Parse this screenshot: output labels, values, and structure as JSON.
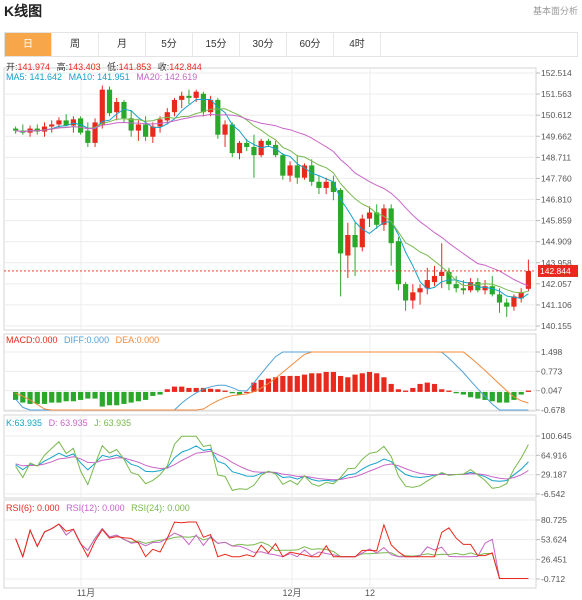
{
  "title": "K线图",
  "top_link": "基本面分析",
  "tabs": [
    "日",
    "周",
    "月",
    "5分",
    "15分",
    "30分",
    "60分",
    "4时"
  ],
  "active_tab": 0,
  "ohlc_info": {
    "open_label": "开:",
    "open": "141.974",
    "high_label": "高:",
    "high": "143.403",
    "low_label": "低:",
    "low": "141.853",
    "close_label": "收:",
    "close": "142.844"
  },
  "ma_info": {
    "ma5_label": "MA5:",
    "ma5": "141.642",
    "ma10_label": "MA10:",
    "ma10": "141.951",
    "ma20_label": "MA20:",
    "ma20": "142.619"
  },
  "macd_info": {
    "macd_label": "MACD:",
    "macd": "0.000",
    "diff_label": "DIFF:",
    "diff": "0.000",
    "dea_label": "DEA:",
    "dea": "0.000"
  },
  "kdj_info": {
    "k_label": "K:",
    "k": "63.935",
    "d_label": "D:",
    "d": "63.935",
    "j_label": "J:",
    "j": "63.935"
  },
  "rsi_info": {
    "rsi6_label": "RSI(6):",
    "rsi6": "0.000",
    "rsi12_label": "RSI(12):",
    "rsi12": "0.000",
    "rsi24_label": "RSI(24):",
    "rsi24": "0.000"
  },
  "colors": {
    "up": "#e8291d",
    "down": "#2aa82a",
    "ma5": "#14a2c8",
    "ma10": "#78b94d",
    "ma20": "#c865c8",
    "diff": "#4ea0d8",
    "dea": "#f08a3c",
    "accent": "#f7a64a",
    "price_tag": "#e8291d"
  },
  "chart_data": [
    {
      "type": "candlestick",
      "title": "K线图",
      "x_labels": [
        "11月",
        "12月",
        "12"
      ],
      "y_ticks": [
        "152.514",
        "151.563",
        "150.612",
        "149.662",
        "148.711",
        "147.760",
        "146.810",
        "145.859",
        "144.909",
        "143.958",
        "142.057",
        "141.106",
        "140.155"
      ],
      "ylim": [
        140.155,
        152.514
      ],
      "current_price": "142.844",
      "candles": [
        [
          149.8,
          149.9,
          149.55,
          149.7
        ],
        [
          149.7,
          150.0,
          149.5,
          149.6
        ],
        [
          149.6,
          149.95,
          149.4,
          149.8
        ],
        [
          149.8,
          150.0,
          149.5,
          149.65
        ],
        [
          149.65,
          150.1,
          149.4,
          149.9
        ],
        [
          149.9,
          150.2,
          149.6,
          150.0
        ],
        [
          150.0,
          150.35,
          149.8,
          150.2
        ],
        [
          150.2,
          150.5,
          149.9,
          149.95
        ],
        [
          149.95,
          150.4,
          149.6,
          150.25
        ],
        [
          150.3,
          150.4,
          149.5,
          149.6
        ],
        [
          149.7,
          150.1,
          148.9,
          149.1
        ],
        [
          149.1,
          150.3,
          148.9,
          150.1
        ],
        [
          150.0,
          151.9,
          149.8,
          151.7
        ],
        [
          151.7,
          151.85,
          150.4,
          150.55
        ],
        [
          150.6,
          151.3,
          150.2,
          151.1
        ],
        [
          151.1,
          151.2,
          150.1,
          150.3
        ],
        [
          150.3,
          150.7,
          149.4,
          149.7
        ],
        [
          149.7,
          150.2,
          149.2,
          150.0
        ],
        [
          150.0,
          150.4,
          149.2,
          149.4
        ],
        [
          149.4,
          150.1,
          149.1,
          149.9
        ],
        [
          149.9,
          150.4,
          149.6,
          150.25
        ],
        [
          150.2,
          150.8,
          150.0,
          150.6
        ],
        [
          150.6,
          151.3,
          150.4,
          151.2
        ],
        [
          151.2,
          151.6,
          150.8,
          151.4
        ],
        [
          151.4,
          151.7,
          151.0,
          151.3
        ],
        [
          151.3,
          151.7,
          151.1,
          151.6
        ],
        [
          151.5,
          151.6,
          150.4,
          150.6
        ],
        [
          150.6,
          151.4,
          150.4,
          151.2
        ],
        [
          151.2,
          151.3,
          149.3,
          149.5
        ],
        [
          149.5,
          150.2,
          148.9,
          150.0
        ],
        [
          150.0,
          150.1,
          148.4,
          148.6
        ],
        [
          148.6,
          149.2,
          148.3,
          149.1
        ],
        [
          149.1,
          149.3,
          148.7,
          148.9
        ],
        [
          148.9,
          149.5,
          147.4,
          148.5
        ],
        [
          148.5,
          149.3,
          148.4,
          149.2
        ],
        [
          149.2,
          149.3,
          148.9,
          149.0
        ],
        [
          149.0,
          149.2,
          148.4,
          148.5
        ],
        [
          148.5,
          148.6,
          147.3,
          147.5
        ],
        [
          147.5,
          148.2,
          147.2,
          148.0
        ],
        [
          148.0,
          148.5,
          147.1,
          147.4
        ],
        [
          147.4,
          148.1,
          147.3,
          148.0
        ],
        [
          148.0,
          148.3,
          147.0,
          147.2
        ],
        [
          147.2,
          147.5,
          146.6,
          146.9
        ],
        [
          146.9,
          147.4,
          146.6,
          147.2
        ],
        [
          147.2,
          147.5,
          146.3,
          146.7
        ],
        [
          146.8,
          146.9,
          141.6,
          143.7
        ],
        [
          143.6,
          145.2,
          142.5,
          144.6
        ],
        [
          144.6,
          145.2,
          142.6,
          144.0
        ],
        [
          144.0,
          145.6,
          143.8,
          145.4
        ],
        [
          145.4,
          146.0,
          145.0,
          145.7
        ],
        [
          145.7,
          146.1,
          144.9,
          145.1
        ],
        [
          145.1,
          146.1,
          144.8,
          145.9
        ],
        [
          145.9,
          146.1,
          143.1,
          144.2
        ],
        [
          144.3,
          144.5,
          141.9,
          142.2
        ],
        [
          142.2,
          142.3,
          140.9,
          141.4
        ],
        [
          141.4,
          142.2,
          141.0,
          141.8
        ],
        [
          141.8,
          142.2,
          141.2,
          142.0
        ],
        [
          142.0,
          143.0,
          141.7,
          142.4
        ],
        [
          142.3,
          143.1,
          142.1,
          142.6
        ],
        [
          142.6,
          144.2,
          142.0,
          142.8
        ],
        [
          142.8,
          143.0,
          141.9,
          142.2
        ],
        [
          142.2,
          142.6,
          141.8,
          142.0
        ],
        [
          142.0,
          142.4,
          141.7,
          141.9
        ],
        [
          141.9,
          142.5,
          141.8,
          142.3
        ],
        [
          142.3,
          142.5,
          141.8,
          141.9
        ],
        [
          141.9,
          142.4,
          141.7,
          142.1
        ],
        [
          142.1,
          142.6,
          141.6,
          141.7
        ],
        [
          141.7,
          142.0,
          140.8,
          141.3
        ],
        [
          141.3,
          141.5,
          140.6,
          141.1
        ],
        [
          141.1,
          141.7,
          140.9,
          141.6
        ],
        [
          141.5,
          142.0,
          141.3,
          141.8
        ],
        [
          141.97,
          143.4,
          141.85,
          142.84
        ]
      ]
    },
    {
      "type": "bar",
      "title": "MACD",
      "y_ticks": [
        "1.498",
        "0.773",
        "0.047",
        "-0.678"
      ],
      "ylim": [
        -0.678,
        1.498
      ],
      "values": [
        -0.3,
        -0.4,
        -0.45,
        -0.45,
        -0.45,
        -0.4,
        -0.4,
        -0.35,
        -0.35,
        -0.3,
        -0.25,
        -0.25,
        -0.55,
        -0.5,
        -0.5,
        -0.45,
        -0.4,
        -0.35,
        -0.3,
        -0.15,
        -0.1,
        0.1,
        0.2,
        0.2,
        0.15,
        0.15,
        0.15,
        0.12,
        0.1,
        0.05,
        -0.05,
        -0.1,
        0.0,
        0.35,
        0.45,
        0.5,
        0.55,
        0.6,
        0.6,
        0.6,
        0.65,
        0.7,
        0.7,
        0.75,
        0.75,
        0.6,
        0.55,
        0.65,
        0.7,
        0.75,
        0.7,
        0.55,
        0.3,
        0.1,
        0.05,
        0.15,
        0.3,
        0.35,
        0.3,
        0.1,
        0.05,
        -0.05,
        -0.1,
        -0.2,
        -0.25,
        -0.3,
        -0.35,
        -0.4,
        -0.4,
        -0.3,
        -0.1,
        0.05
      ]
    },
    {
      "type": "line",
      "title": "KDJ",
      "y_ticks": [
        "100.645",
        "64.916",
        "29.187",
        "-6.542"
      ],
      "ylim": [
        -6.542,
        100.645
      ]
    },
    {
      "type": "line",
      "title": "RSI",
      "y_ticks": [
        "80.725",
        "53.624",
        "26.451",
        "-0.712"
      ],
      "ylim": [
        -0.712,
        80.725
      ]
    }
  ]
}
